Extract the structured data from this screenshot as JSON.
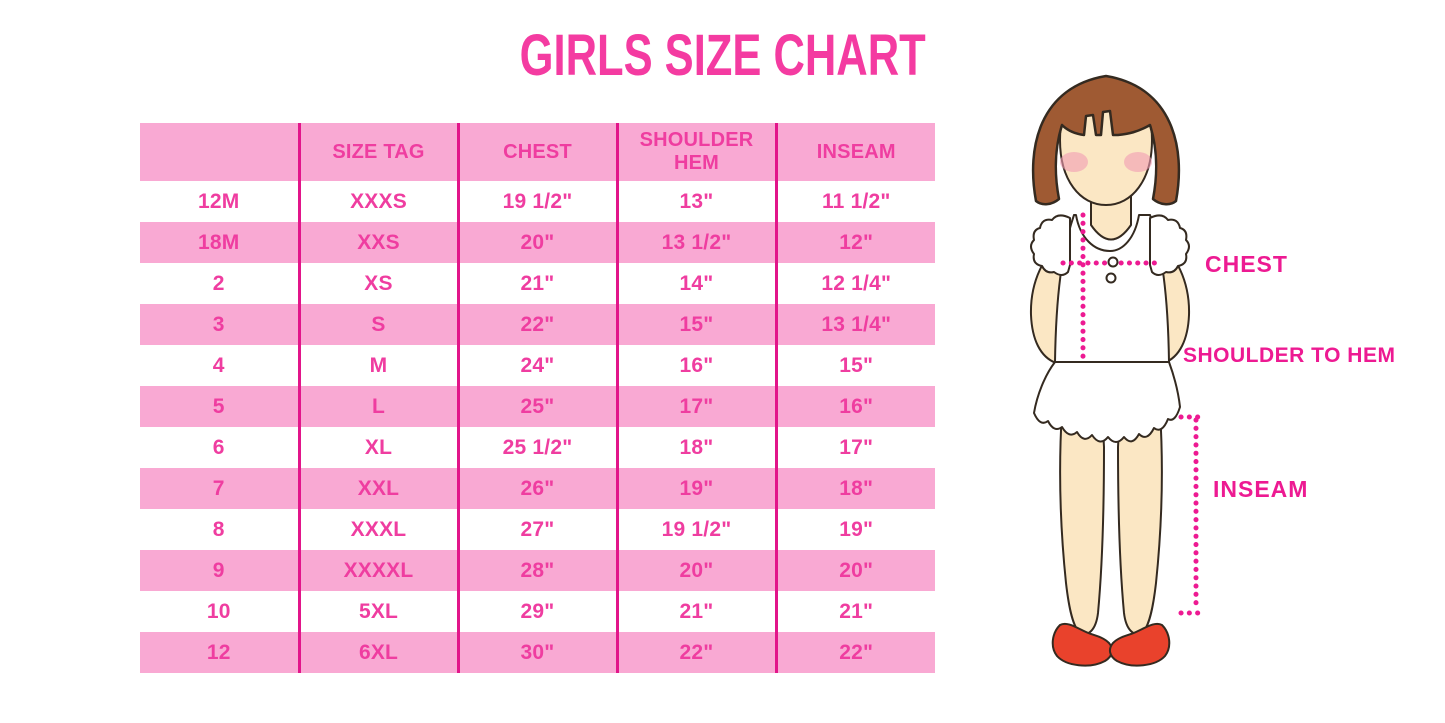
{
  "title": "GIRLS SIZE CHART",
  "colors": {
    "title": "#f43ba1",
    "accent": "#ef3da0",
    "band": "#f9a9d3",
    "divider": "#e2158a",
    "magenta": "#ed1a92",
    "hair": "#9f5a33",
    "skin": "#fbe7c4",
    "blush": "#f29cb4",
    "shoe": "#e9422c",
    "outline": "#342a20"
  },
  "table": {
    "columns": [
      "",
      "SIZE TAG",
      "CHEST",
      "SHOULDER HEM",
      "INSEAM"
    ],
    "rows": [
      [
        "12M",
        "XXXS",
        "19 1/2\"",
        "13\"",
        "11 1/2\""
      ],
      [
        "18M",
        "XXS",
        "20\"",
        "13 1/2\"",
        "12\""
      ],
      [
        "2",
        "XS",
        "21\"",
        "14\"",
        "12 1/4\""
      ],
      [
        "3",
        "S",
        "22\"",
        "15\"",
        "13 1/4\""
      ],
      [
        "4",
        "M",
        "24\"",
        "16\"",
        "15\""
      ],
      [
        "5",
        "L",
        "25\"",
        "17\"",
        "16\""
      ],
      [
        "6",
        "XL",
        "25 1/2\"",
        "18\"",
        "17\""
      ],
      [
        "7",
        "XXL",
        "26\"",
        "19\"",
        "18\""
      ],
      [
        "8",
        "XXXL",
        "27\"",
        "19 1/2\"",
        "19\""
      ],
      [
        "9",
        "XXXXL",
        "28\"",
        "20\"",
        "20\""
      ],
      [
        "10",
        "5XL",
        "29\"",
        "21\"",
        "21\""
      ],
      [
        "12",
        "6XL",
        "30\"",
        "22\"",
        "22\""
      ]
    ]
  },
  "figure": {
    "labels": {
      "chest": "CHEST",
      "shoulder_to_hem": "SHOULDER TO HEM",
      "inseam": "INSEAM"
    }
  }
}
